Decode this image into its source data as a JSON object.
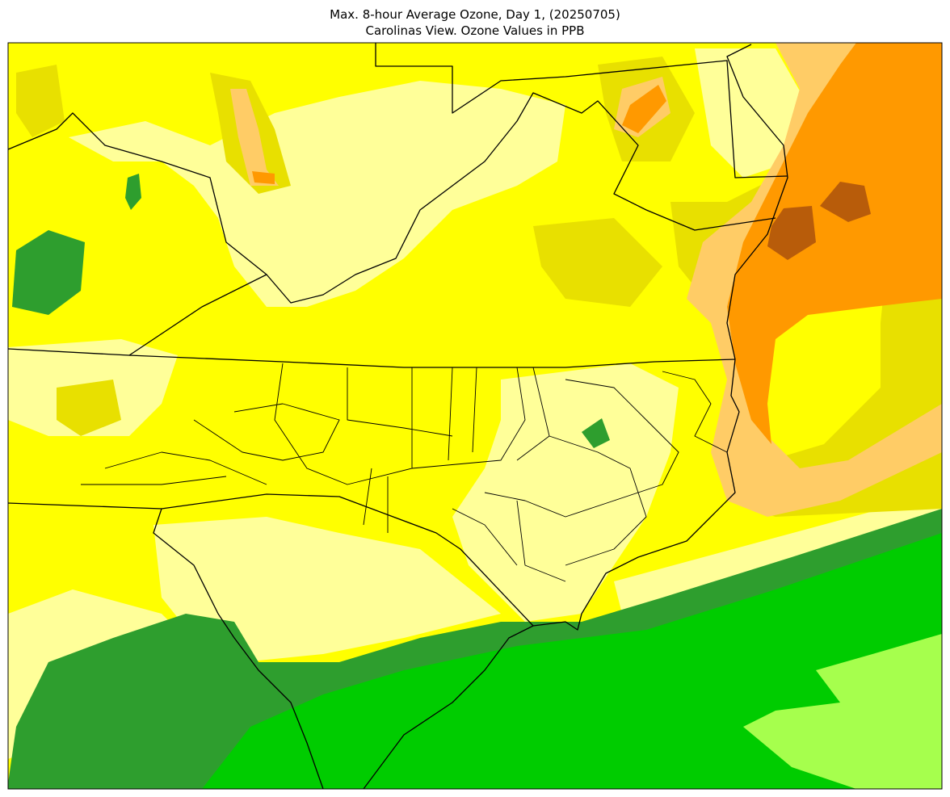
{
  "title": {
    "line1": "Max. 8-hour Average Ozone, Day 1, (20250705)",
    "line2": "Carolinas View. Ozone Values in PPB"
  }
}
